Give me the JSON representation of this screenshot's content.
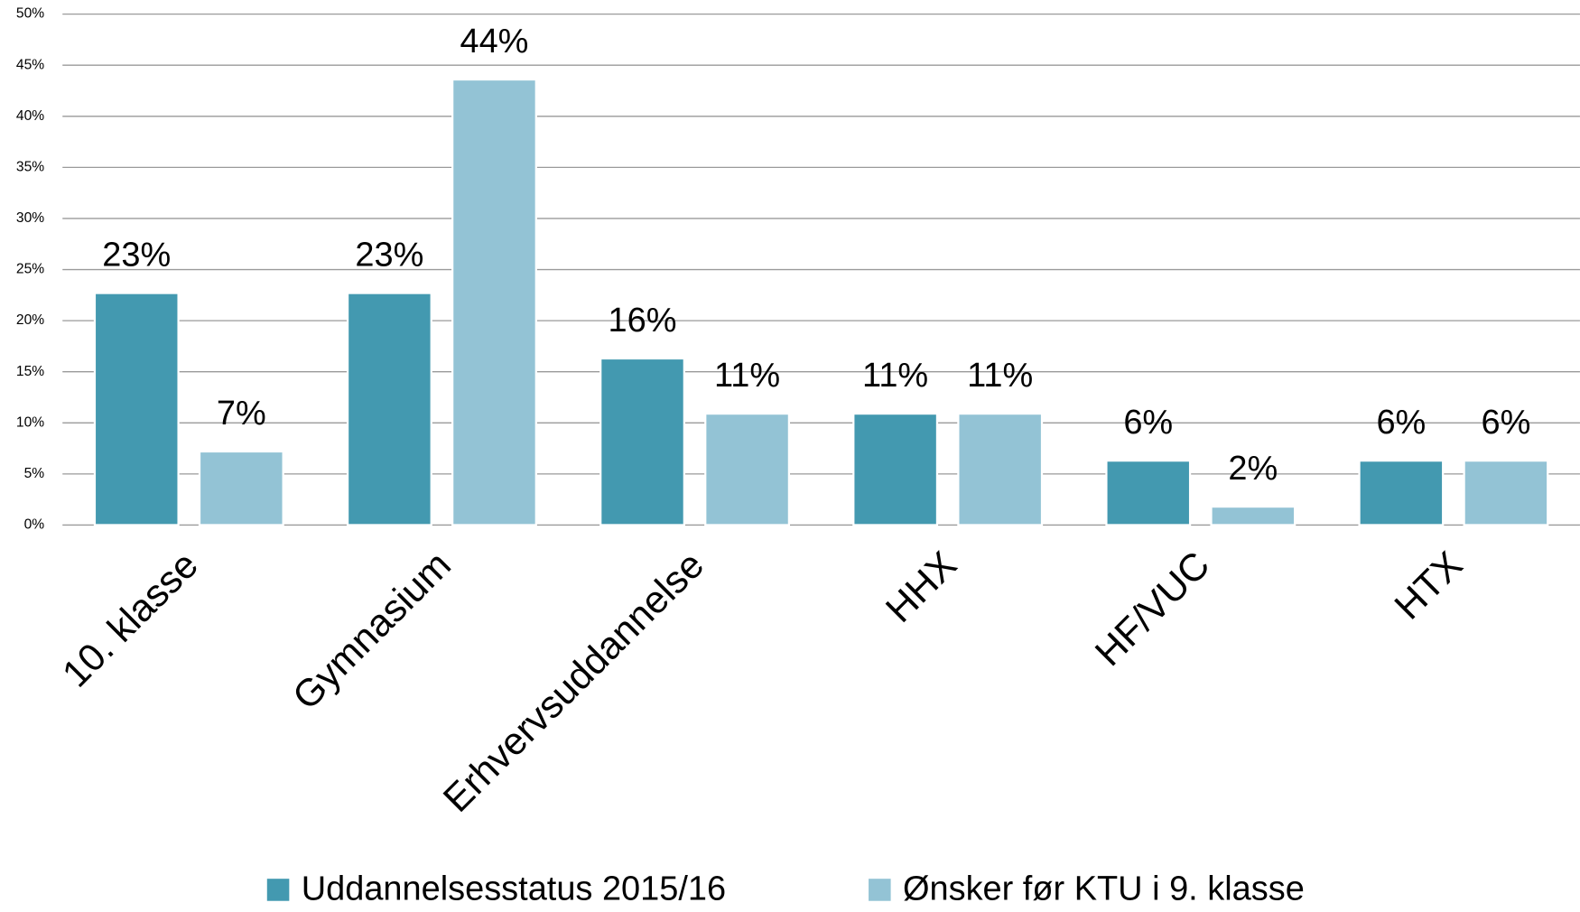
{
  "chart_data": {
    "type": "bar",
    "categories": [
      "10. klasse",
      "Gymnasium",
      "Erhvervsuddannelse",
      "HHX",
      "HF/VUC",
      "HTX"
    ],
    "series": [
      {
        "name": "Uddannelsesstatus 2015/16",
        "color": "#4399b0",
        "values": [
          22.7,
          22.7,
          16.3,
          10.9,
          6.3,
          6.3
        ],
        "value_labels": [
          "23%",
          "23%",
          "16%",
          "11%",
          "6%",
          "6%"
        ]
      },
      {
        "name": "Ønsker før KTU i 9. klasse",
        "color": "#93c3d5",
        "values": [
          7.2,
          43.6,
          10.9,
          10.9,
          1.8,
          6.3
        ],
        "value_labels": [
          "7%",
          "44%",
          "11%",
          "11%",
          "2%",
          "6%"
        ]
      }
    ],
    "ylim": [
      0,
      50
    ],
    "yticks": [
      {
        "value": 0,
        "label": "0%"
      },
      {
        "value": 5,
        "label": "5%"
      },
      {
        "value": 10,
        "label": "10%"
      },
      {
        "value": 15,
        "label": "15%"
      },
      {
        "value": 20,
        "label": "20%"
      },
      {
        "value": 25,
        "label": "25%"
      },
      {
        "value": 30,
        "label": "30%"
      },
      {
        "value": 35,
        "label": "35%"
      },
      {
        "value": 40,
        "label": "40%"
      },
      {
        "value": 45,
        "label": "45%"
      },
      {
        "value": 50,
        "label": "50%"
      }
    ],
    "grid": true,
    "legend": "bottom"
  }
}
